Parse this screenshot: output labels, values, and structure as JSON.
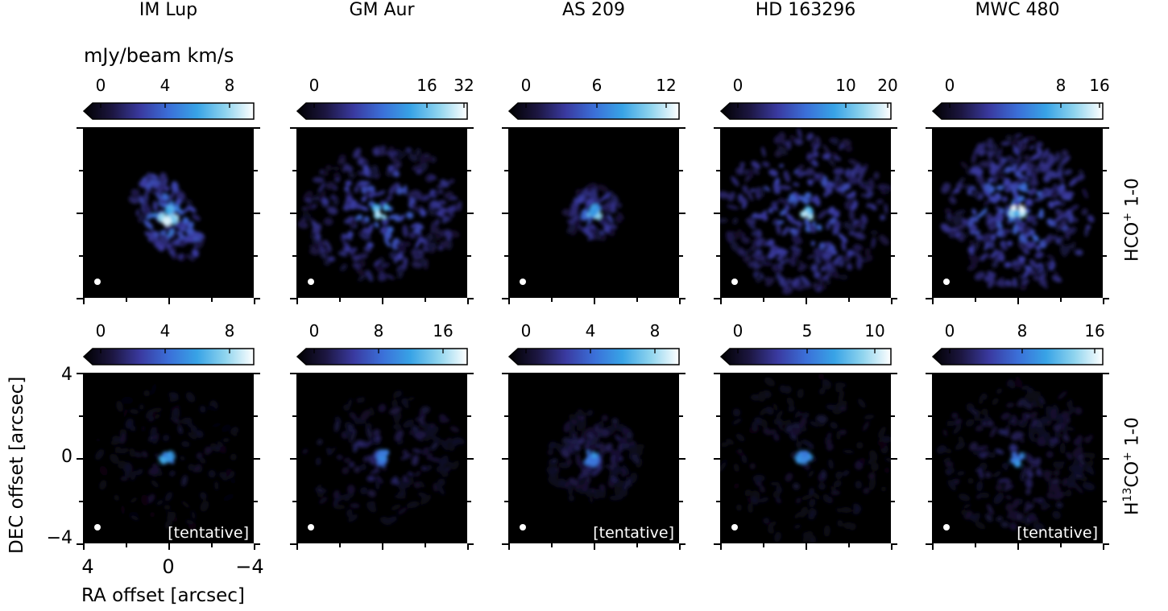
{
  "columns": [
    {
      "name": "IM Lup",
      "row1": {
        "ticks": [
          {
            "v": "0",
            "p": 0.05
          },
          {
            "v": "4",
            "p": 0.45
          },
          {
            "v": "8",
            "p": 0.85
          }
        ],
        "tentative": false
      },
      "row2": {
        "ticks": [
          {
            "v": "0",
            "p": 0.05
          },
          {
            "v": "4",
            "p": 0.45
          },
          {
            "v": "8",
            "p": 0.85
          }
        ],
        "tentative": true
      }
    },
    {
      "name": "GM Aur",
      "row1": {
        "ticks": [
          {
            "v": "0",
            "p": 0.05
          },
          {
            "v": "16",
            "p": 0.75
          },
          {
            "v": "32",
            "p": 0.98
          }
        ],
        "tentative": false
      },
      "row2": {
        "ticks": [
          {
            "v": "0",
            "p": 0.05
          },
          {
            "v": "8",
            "p": 0.45
          },
          {
            "v": "16",
            "p": 0.85
          }
        ],
        "tentative": false
      }
    },
    {
      "name": "AS 209",
      "row1": {
        "ticks": [
          {
            "v": "0",
            "p": 0.05
          },
          {
            "v": "6",
            "p": 0.49
          },
          {
            "v": "12",
            "p": 0.92
          }
        ],
        "tentative": false
      },
      "row2": {
        "ticks": [
          {
            "v": "0",
            "p": 0.05
          },
          {
            "v": "4",
            "p": 0.45
          },
          {
            "v": "8",
            "p": 0.85
          }
        ],
        "tentative": true
      }
    },
    {
      "name": "HD 163296",
      "row1": {
        "ticks": [
          {
            "v": "0",
            "p": 0.05
          },
          {
            "v": "10",
            "p": 0.72
          },
          {
            "v": "20",
            "p": 0.98
          }
        ],
        "tentative": false
      },
      "row2": {
        "ticks": [
          {
            "v": "0",
            "p": 0.05
          },
          {
            "v": "5",
            "p": 0.48
          },
          {
            "v": "10",
            "p": 0.9
          }
        ],
        "tentative": false
      }
    },
    {
      "name": "MWC 480",
      "row1": {
        "ticks": [
          {
            "v": "0",
            "p": 0.05
          },
          {
            "v": "8",
            "p": 0.74
          },
          {
            "v": "16",
            "p": 0.98
          }
        ],
        "tentative": false
      },
      "row2": {
        "ticks": [
          {
            "v": "0",
            "p": 0.05
          },
          {
            "v": "8",
            "p": 0.5
          },
          {
            "v": "16",
            "p": 0.95
          }
        ],
        "tentative": true
      }
    }
  ],
  "unit_label": "mJy/beam km/s",
  "row_labels": {
    "row1": {
      "base": "HCO",
      "sup": "+",
      "tail": " 1-0"
    },
    "row2": {
      "pre": "H",
      "iso": "13",
      "base": "CO",
      "sup": "+",
      "tail": " 1-0"
    }
  },
  "tentative_label": "[tentative]",
  "axes": {
    "ylabel": "DEC offset [arcsec]",
    "xlabel": "RA offset [arcsec]",
    "yticks": [
      "4",
      "0",
      "−4"
    ],
    "xticks": [
      "4",
      "0",
      "−4"
    ]
  },
  "colormap": [
    "#000000",
    "#1c1640",
    "#3a3aa0",
    "#3b6fd8",
    "#38a3e6",
    "#8fd4ee",
    "#ffffff"
  ]
}
